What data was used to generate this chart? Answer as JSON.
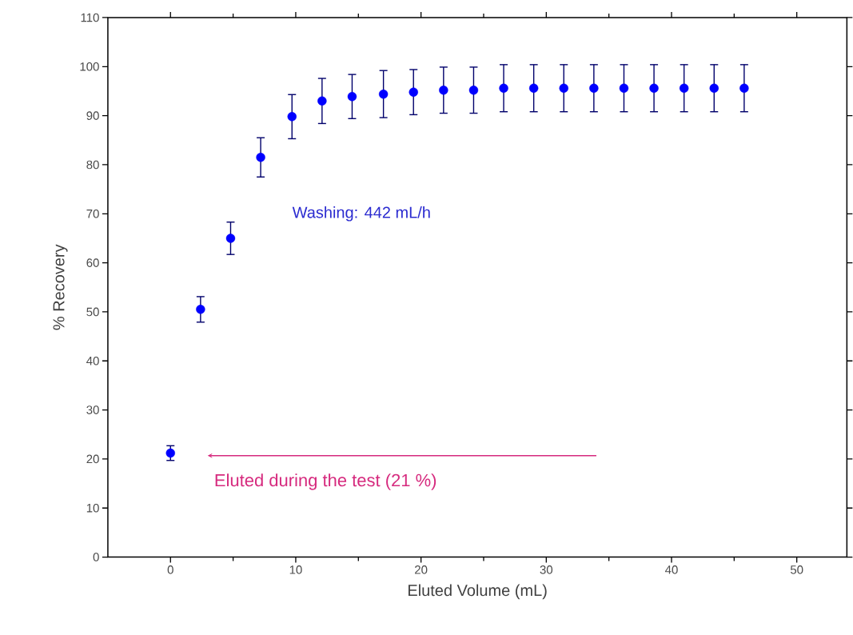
{
  "chart_data": {
    "type": "scatter",
    "xlabel": "Eluted Volume (mL)",
    "ylabel": "% Recovery",
    "x": [
      0,
      2.4,
      4.8,
      7.2,
      9.7,
      12.1,
      14.5,
      17,
      19.4,
      21.8,
      24.2,
      26.6,
      29,
      31.4,
      33.8,
      36.2,
      38.6,
      41,
      43.4,
      45.8
    ],
    "series": [
      {
        "color": "#0000ff",
        "values": [
          21.2,
          50.5,
          65,
          81.5,
          89.8,
          93,
          93.9,
          94.4,
          94.8,
          95.2,
          95.2,
          95.6,
          95.6,
          95.6,
          95.6,
          95.6,
          95.6,
          95.6,
          95.6,
          95.6
        ],
        "errors": [
          1.5,
          2.6,
          3.3,
          4,
          4.5,
          4.6,
          4.5,
          4.8,
          4.6,
          4.7,
          4.7,
          4.8,
          4.8,
          4.8,
          4.8,
          4.8,
          4.8,
          4.8,
          4.8,
          4.8
        ]
      }
    ],
    "marker": "circle",
    "xlim": [
      -5,
      54
    ],
    "ylim": [
      0,
      110
    ],
    "xticks": [
      0,
      10,
      20,
      30,
      40,
      50
    ],
    "yticks": [
      0,
      10,
      20,
      30,
      40,
      50,
      60,
      70,
      80,
      90,
      100,
      110
    ],
    "annotations": [
      "Eluted during the test (21 %)",
      "Washing: 442 mL/h"
    ]
  }
}
